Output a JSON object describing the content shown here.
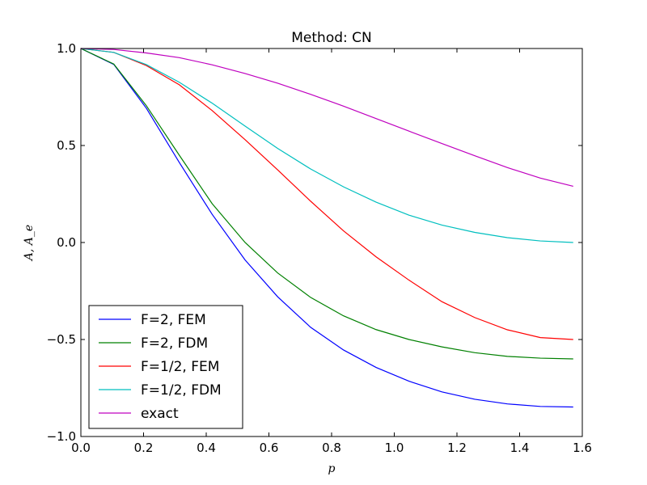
{
  "chart_data": {
    "type": "line",
    "title": "Method: CN",
    "xlabel": "p",
    "ylabel": "A, A_e",
    "xlim": [
      0.0,
      1.6
    ],
    "ylim": [
      -1.0,
      1.0
    ],
    "x_ticks": [
      "0.0",
      "0.2",
      "0.4",
      "0.6",
      "0.8",
      "1.0",
      "1.2",
      "1.4",
      "1.6"
    ],
    "y_ticks": [
      "1.0",
      "0.5",
      "0.0",
      "−0.5",
      "−1.0"
    ],
    "x_tick_values": [
      0.0,
      0.2,
      0.4,
      0.6,
      0.8,
      1.0,
      1.2,
      1.4,
      1.6
    ],
    "y_tick_values": [
      1.0,
      0.5,
      0.0,
      -0.5,
      -1.0
    ],
    "grid": false,
    "legend_position": "lower-left",
    "x": [
      0.0,
      0.105,
      0.209,
      0.314,
      0.419,
      0.524,
      0.628,
      0.733,
      0.838,
      0.942,
      1.047,
      1.152,
      1.257,
      1.361,
      1.466,
      1.571
    ],
    "series": [
      {
        "name": "F=2, FEM",
        "color": "#0000ff",
        "values": [
          1.0,
          0.918,
          0.692,
          0.413,
          0.145,
          -0.09,
          -0.28,
          -0.437,
          -0.554,
          -0.644,
          -0.715,
          -0.77,
          -0.808,
          -0.832,
          -0.845,
          -0.848
        ]
      },
      {
        "name": "F=2, FDM",
        "color": "#008000",
        "values": [
          1.0,
          0.92,
          0.705,
          0.45,
          0.2,
          0.0,
          -0.157,
          -0.283,
          -0.378,
          -0.449,
          -0.5,
          -0.538,
          -0.568,
          -0.587,
          -0.596,
          -0.6
        ]
      },
      {
        "name": "F=1/2, FEM",
        "color": "#ff0000",
        "values": [
          1.0,
          0.98,
          0.912,
          0.813,
          0.68,
          0.53,
          0.374,
          0.213,
          0.06,
          -0.074,
          -0.194,
          -0.305,
          -0.387,
          -0.45,
          -0.49,
          -0.5
        ]
      },
      {
        "name": "F=1/2, FDM",
        "color": "#00bfbf",
        "values": [
          1.0,
          0.98,
          0.917,
          0.826,
          0.718,
          0.6,
          0.485,
          0.379,
          0.287,
          0.208,
          0.141,
          0.09,
          0.052,
          0.025,
          0.008,
          0.0
        ]
      },
      {
        "name": "exact",
        "color": "#bf00bf",
        "values": [
          1.0,
          0.995,
          0.977,
          0.953,
          0.916,
          0.871,
          0.821,
          0.764,
          0.703,
          0.639,
          0.574,
          0.51,
          0.447,
          0.386,
          0.332,
          0.29
        ]
      }
    ]
  }
}
